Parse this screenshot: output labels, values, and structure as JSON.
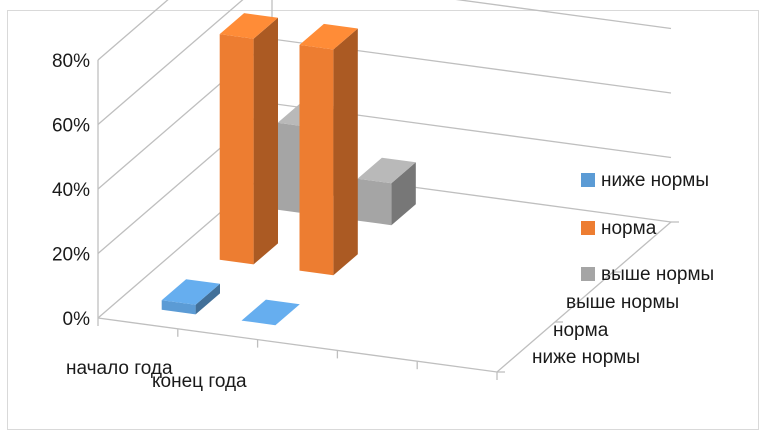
{
  "chart_data": {
    "type": "bar",
    "variant": "3d-column",
    "categories": [
      "начало года",
      "конец года"
    ],
    "series": [
      {
        "name": "ниже нормы",
        "values": [
          0.03,
          0.0
        ],
        "color": "#5b9bd5"
      },
      {
        "name": "норма",
        "values": [
          0.7,
          0.7
        ],
        "color": "#ed7d31"
      },
      {
        "name": "выше нормы",
        "values": [
          0.27,
          0.13
        ],
        "color": "#a5a5a5"
      }
    ],
    "y_ticks": [
      "0%",
      "20%",
      "40%",
      "60%",
      "80%"
    ],
    "ylim": [
      0,
      0.8
    ],
    "depth_labels": [
      "выше нормы",
      "норма",
      "ниже нормы"
    ],
    "legend_position": "right",
    "grid": true
  }
}
